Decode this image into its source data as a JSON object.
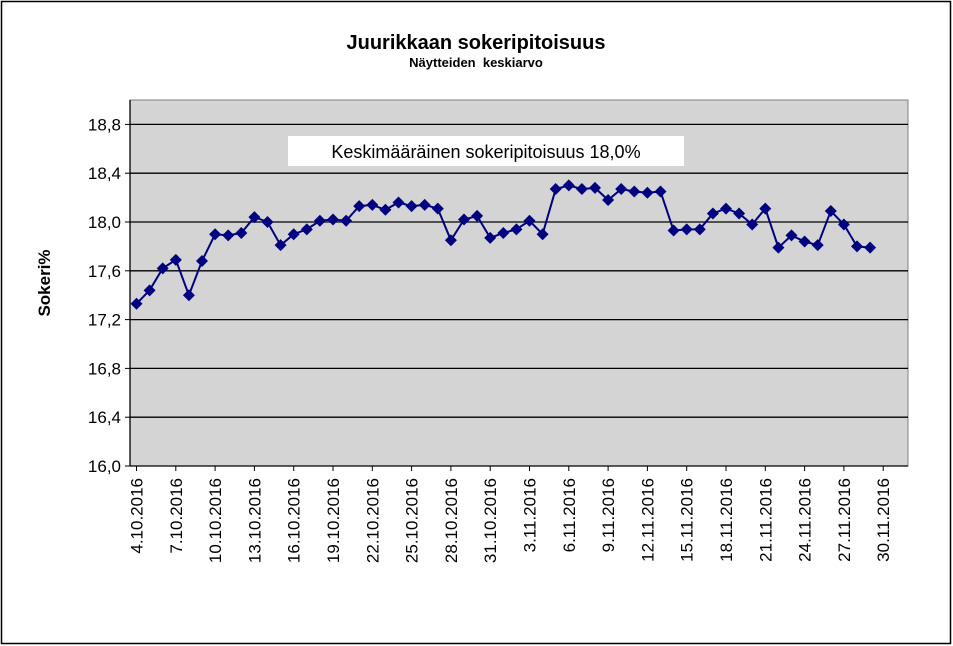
{
  "chart_data": {
    "type": "line",
    "title": "Juurikkaan sokeripitoisuus",
    "subtitle": "Näytteiden  keskiarvo",
    "xlabel": "",
    "ylabel": "Sokeri%",
    "ylim": [
      16.0,
      19.0
    ],
    "yticks": [
      "16,0",
      "16,4",
      "16,8",
      "17,2",
      "17,6",
      "18,0",
      "18,4",
      "18,8"
    ],
    "ytick_values": [
      16.0,
      16.4,
      16.8,
      17.2,
      17.6,
      18.0,
      18.4,
      18.8
    ],
    "xticks": [
      "4.10.2016",
      "7.10.2016",
      "10.10.2016",
      "13.10.2016",
      "16.10.2016",
      "19.10.2016",
      "22.10.2016",
      "25.10.2016",
      "28.10.2016",
      "31.10.2016",
      "3.11.2016",
      "6.11.2016",
      "9.11.2016",
      "12.11.2016",
      "15.11.2016",
      "18.11.2016",
      "21.11.2016",
      "24.11.2016",
      "27.11.2016",
      "30.11.2016"
    ],
    "xrange": [
      "4.10.2016",
      "30.11.2016"
    ],
    "grid": true,
    "annotation": "Keskimääräinen sokeripitoisuus 18,0%",
    "colors": {
      "series": "#000080",
      "plot_bg": "#d4d4d4"
    },
    "marker": "diamond",
    "series": [
      {
        "x": [
          "4.10.2016",
          "5.10.2016",
          "6.10.2016",
          "7.10.2016",
          "8.10.2016",
          "9.10.2016",
          "10.10.2016",
          "11.10.2016",
          "12.10.2016",
          "13.10.2016",
          "14.10.2016",
          "15.10.2016",
          "16.10.2016",
          "17.10.2016",
          "18.10.2016",
          "19.10.2016",
          "20.10.2016",
          "21.10.2016",
          "22.10.2016",
          "23.10.2016",
          "24.10.2016",
          "25.10.2016",
          "26.10.2016",
          "27.10.2016",
          "28.10.2016",
          "29.10.2016",
          "30.10.2016",
          "31.10.2016",
          "1.11.2016",
          "2.11.2016",
          "3.11.2016",
          "4.11.2016",
          "5.11.2016",
          "6.11.2016",
          "7.11.2016",
          "8.11.2016",
          "9.11.2016",
          "10.11.2016",
          "11.11.2016",
          "12.11.2016",
          "13.11.2016",
          "14.11.2016",
          "15.11.2016",
          "16.11.2016",
          "17.11.2016",
          "18.11.2016",
          "19.11.2016",
          "20.11.2016",
          "21.11.2016",
          "22.11.2016",
          "23.11.2016",
          "24.11.2016",
          "25.11.2016",
          "26.11.2016",
          "27.11.2016",
          "28.11.2016",
          "29.11.2016"
        ],
        "values": [
          17.33,
          17.44,
          17.62,
          17.69,
          17.4,
          17.68,
          17.9,
          17.89,
          17.91,
          18.04,
          18.0,
          17.81,
          17.9,
          17.94,
          18.01,
          18.02,
          18.01,
          18.13,
          18.14,
          18.1,
          18.16,
          18.13,
          18.14,
          18.11,
          17.85,
          18.02,
          18.05,
          17.87,
          17.91,
          17.94,
          18.01,
          17.9,
          18.27,
          18.3,
          18.27,
          18.28,
          18.18,
          18.27,
          18.25,
          18.24,
          18.25,
          17.93,
          17.94,
          17.94,
          18.07,
          18.11,
          18.07,
          17.98,
          18.11,
          17.79,
          17.89,
          17.84,
          17.81,
          18.09,
          17.98,
          17.8,
          17.79
        ]
      }
    ]
  }
}
